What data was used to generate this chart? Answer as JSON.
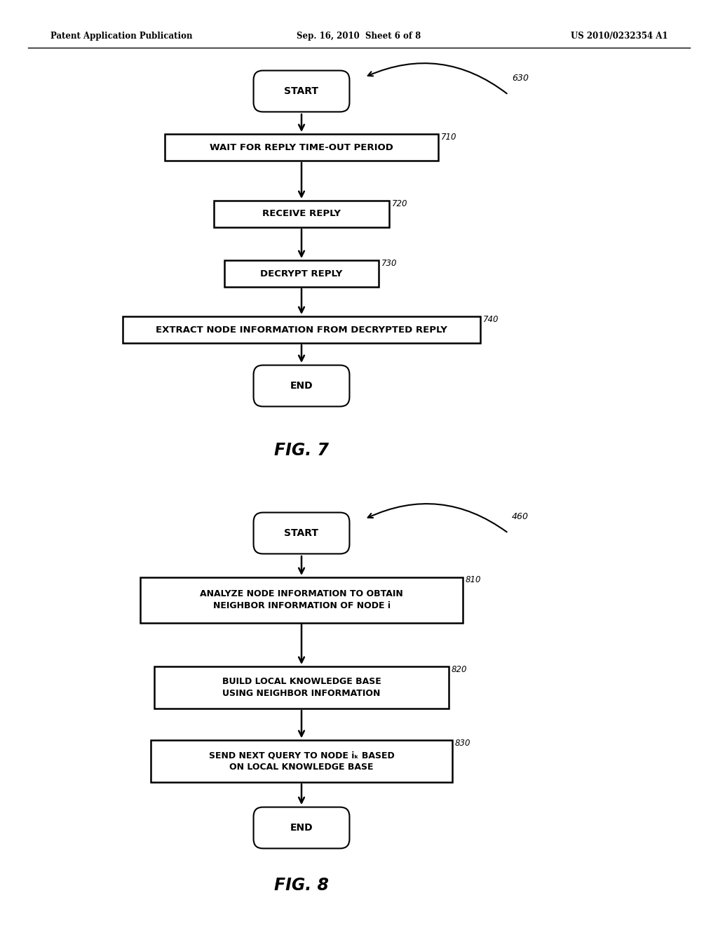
{
  "bg_color": "#ffffff",
  "header_left": "Patent Application Publication",
  "header_mid": "Sep. 16, 2010  Sheet 6 of 8",
  "header_right": "US 2010/0232354 A1",
  "fig7_title": "FIG. 7",
  "fig8_title": "FIG. 8",
  "fig7_ref": "630",
  "fig8_ref": "460",
  "fig7_nodes": [
    {
      "type": "oval",
      "text": "START",
      "label": null,
      "label_id": null
    },
    {
      "type": "rect",
      "text": "WAIT FOR REPLY TIME-OUT PERIOD",
      "label": "710",
      "label_id": "710"
    },
    {
      "type": "rect",
      "text": "RECEIVE REPLY",
      "label": "720",
      "label_id": "720"
    },
    {
      "type": "rect",
      "text": "DECRYPT REPLY",
      "label": "730",
      "label_id": "730"
    },
    {
      "type": "rect",
      "text": "EXTRACT NODE INFORMATION FROM DECRYPTED REPLY",
      "label": "740",
      "label_id": "740"
    },
    {
      "type": "oval",
      "text": "END",
      "label": null,
      "label_id": null
    }
  ],
  "fig8_nodes": [
    {
      "type": "oval",
      "text": "START",
      "label": null,
      "label_id": null
    },
    {
      "type": "rect2",
      "text": "ANALYZE NODE INFORMATION TO OBTAIN\nNEIGHBOR INFORMATION OF NODE i",
      "label": "810",
      "label_id": "810"
    },
    {
      "type": "rect2",
      "text": "BUILD LOCAL KNOWLEDGE BASE\nUSING NEIGHBOR INFORMATION",
      "label": "820",
      "label_id": "820"
    },
    {
      "type": "rect2",
      "text": "SEND NEXT QUERY TO NODE iₖ BASED\nON LOCAL KNOWLEDGE BASE",
      "label": "830",
      "label_id": "830"
    },
    {
      "type": "oval",
      "text": "END",
      "label": null,
      "label_id": null
    }
  ]
}
